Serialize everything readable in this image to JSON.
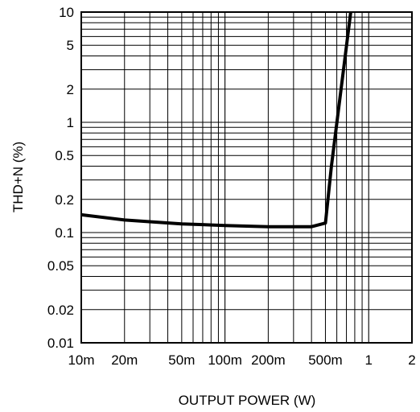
{
  "chart_data": {
    "type": "line",
    "title": "",
    "xlabel": "OUTPUT POWER (W)",
    "ylabel": "THD+N (%)",
    "x_scale": "log",
    "y_scale": "log",
    "xlim": [
      0.01,
      2
    ],
    "ylim": [
      0.01,
      10
    ],
    "grid": true,
    "legend": "none",
    "x_ticks": [
      {
        "value": 0.01,
        "label": "10m"
      },
      {
        "value": 0.02,
        "label": "20m"
      },
      {
        "value": 0.05,
        "label": "50m"
      },
      {
        "value": 0.1,
        "label": "100m"
      },
      {
        "value": 0.2,
        "label": "200m"
      },
      {
        "value": 0.5,
        "label": "500m"
      },
      {
        "value": 1,
        "label": "1"
      },
      {
        "value": 2,
        "label": "2"
      }
    ],
    "y_ticks": [
      {
        "value": 0.01,
        "label": "0.01"
      },
      {
        "value": 0.02,
        "label": "0.02"
      },
      {
        "value": 0.05,
        "label": "0.05"
      },
      {
        "value": 0.1,
        "label": "0.1"
      },
      {
        "value": 0.2,
        "label": "0.2"
      },
      {
        "value": 0.5,
        "label": "0.5"
      },
      {
        "value": 1,
        "label": "1"
      },
      {
        "value": 2,
        "label": "2"
      },
      {
        "value": 5,
        "label": "5"
      },
      {
        "value": 10,
        "label": "10"
      }
    ],
    "series": [
      {
        "x": [
          0.01,
          0.02,
          0.05,
          0.1,
          0.2,
          0.3,
          0.4,
          0.5,
          0.55,
          0.75
        ],
        "y": [
          0.145,
          0.13,
          0.12,
          0.116,
          0.113,
          0.113,
          0.113,
          0.122,
          0.4,
          10
        ]
      }
    ]
  }
}
